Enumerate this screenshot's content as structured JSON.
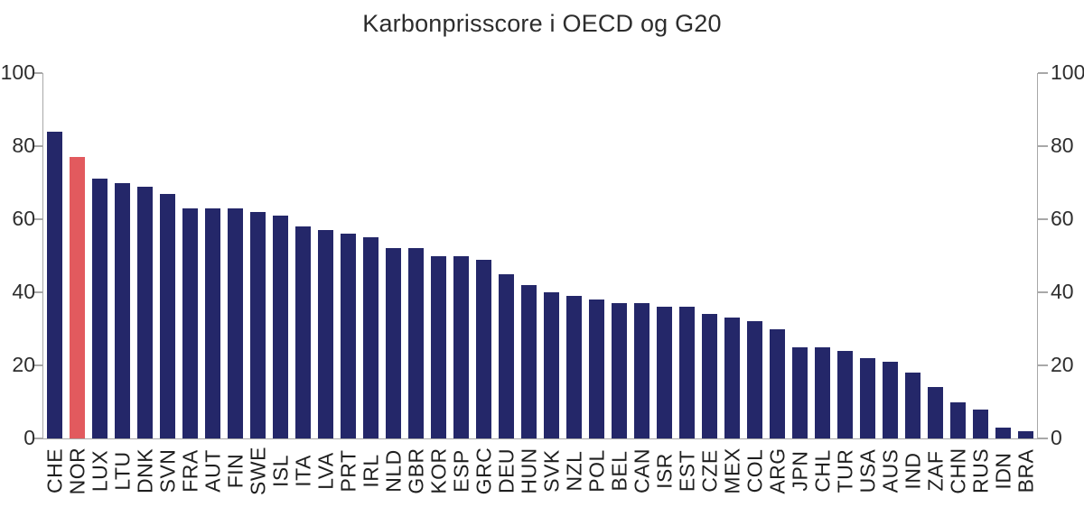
{
  "figure": {
    "title": "Karbonprisscore i OECD og G20"
  },
  "chart_data": {
    "type": "bar",
    "title": "Karbonprisscore i OECD og G20",
    "xlabel": "",
    "ylabel": "",
    "categories": [
      "CHE",
      "NOR",
      "LUX",
      "LTU",
      "DNK",
      "SVN",
      "FRA",
      "AUT",
      "FIN",
      "SWE",
      "ISL",
      "ITA",
      "LVA",
      "PRT",
      "IRL",
      "NLD",
      "GBR",
      "KOR",
      "ESP",
      "GRC",
      "DEU",
      "HUN",
      "SVK",
      "NZL",
      "POL",
      "BEL",
      "CAN",
      "ISR",
      "EST",
      "CZE",
      "MEX",
      "COL",
      "ARG",
      "JPN",
      "CHL",
      "TUR",
      "USA",
      "AUS",
      "IND",
      "ZAF",
      "CHN",
      "RUS",
      "IDN",
      "BRA"
    ],
    "values": [
      84,
      77,
      71,
      70,
      69,
      67,
      63,
      63,
      63,
      62,
      61,
      58,
      57,
      56,
      55,
      52,
      52,
      50,
      50,
      49,
      45,
      42,
      40,
      39,
      38,
      37,
      37,
      36,
      36,
      34,
      33,
      32,
      30,
      25,
      25,
      24,
      22,
      21,
      18,
      14,
      10,
      8,
      3,
      2
    ],
    "highlight": {
      "category": "NOR",
      "color": "#E25A5E"
    },
    "bar_color": "#242769",
    "axis_color": "#A8A8A8",
    "text_color": "#2E2E2E",
    "yticks": [
      0,
      20,
      40,
      60,
      80,
      100
    ],
    "ylim": [
      0,
      100
    ],
    "grid": false,
    "legend": "none",
    "y_axis_sides": [
      "left",
      "right"
    ]
  }
}
